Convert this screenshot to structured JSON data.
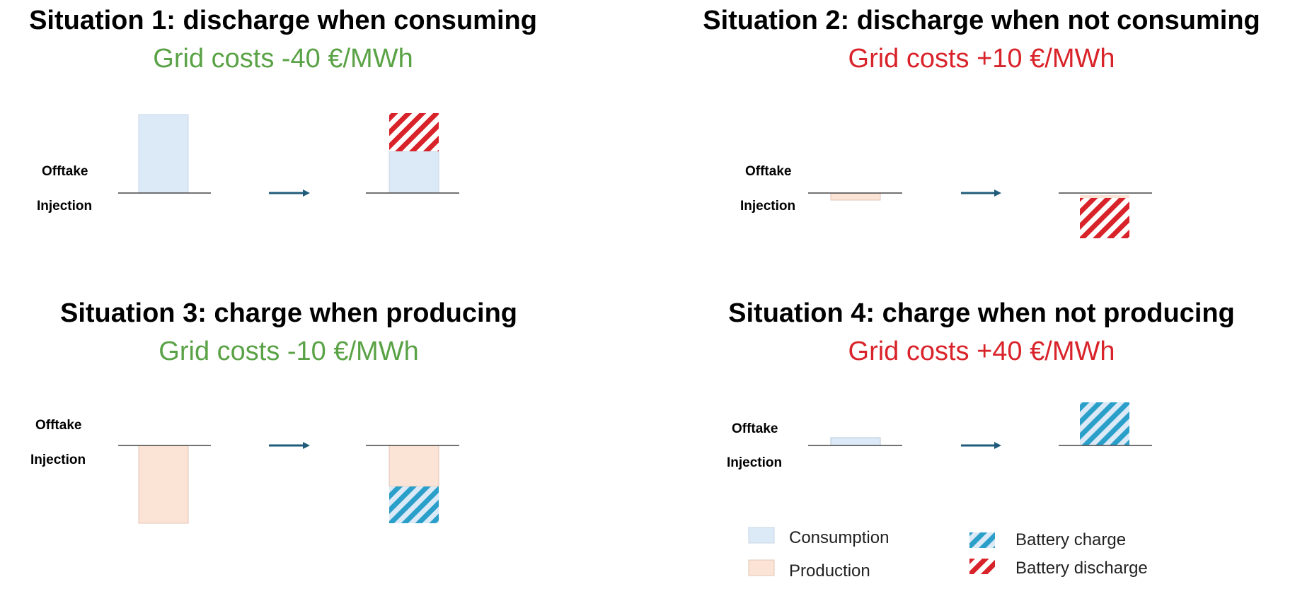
{
  "colors": {
    "positive": "#5aa246",
    "negative": "#d9232a",
    "consumption": "#dce9f6",
    "production": "#fbe3d6",
    "battery_charge": "#2a9fc9",
    "battery_discharge": "#d9232a",
    "arrow": "#1f5b7a",
    "baseline": "#444444"
  },
  "axis_labels": {
    "offtake": "Offtake",
    "injection": "Injection"
  },
  "situations": [
    {
      "title": "Situation 1: discharge when consuming",
      "subtitle": "Grid costs -40 €/MWh",
      "subtitle_tone": "positive"
    },
    {
      "title": "Situation 2: discharge when not consuming",
      "subtitle": "Grid costs +10 €/MWh",
      "subtitle_tone": "negative"
    },
    {
      "title": "Situation 3: charge when producing",
      "subtitle": "Grid costs -10 €/MWh",
      "subtitle_tone": "positive"
    },
    {
      "title": "Situation 4: charge when not producing",
      "subtitle": "Grid costs +40 €/MWh",
      "subtitle_tone": "negative"
    }
  ],
  "legend": {
    "consumption": "Consumption",
    "production": "Production",
    "battery_charge": "Battery charge",
    "battery_discharge": "Battery discharge"
  }
}
